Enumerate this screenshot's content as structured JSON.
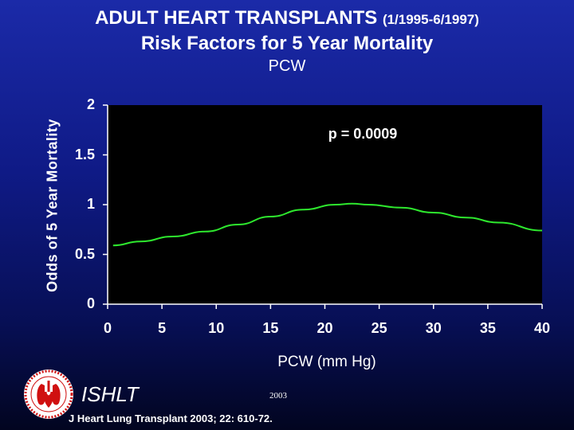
{
  "header": {
    "title_main": "ADULT HEART TRANSPLANTS",
    "title_period": "(1/1995-6/1997)",
    "title_line2": "Risk Factors for 5 Year Mortality",
    "subtitle": "PCW"
  },
  "annotation": {
    "pvalue": "p = 0.0009"
  },
  "footer": {
    "org": "ISHLT",
    "year": "2003",
    "citation": "J Heart Lung Transplant 2003; 22: 610-72."
  },
  "colors": {
    "plot_background": "#000000",
    "line": "#2ee82e",
    "text": "#ffffff",
    "logo_red": "#d01010"
  },
  "icons": {
    "logo": "ishlt-heart-lung-logo"
  },
  "chart_data": {
    "type": "line",
    "title": "ADULT HEART TRANSPLANTS (1/1995-6/1997) Risk Factors for 5 Year Mortality",
    "subtitle": "PCW",
    "xlabel": "PCW (mm Hg)",
    "ylabel": "Odds of 5 Year Mortality",
    "xlim": [
      0,
      40
    ],
    "ylim": [
      0,
      2
    ],
    "x_ticks": [
      "0",
      "5",
      "10",
      "15",
      "20",
      "25",
      "30",
      "35",
      "40"
    ],
    "y_ticks": [
      "0",
      "0.5",
      "1",
      "1.5",
      "2"
    ],
    "grid": false,
    "x": [
      0.5,
      3,
      6,
      9,
      12,
      15,
      18,
      21,
      22.5,
      24,
      27,
      30,
      33,
      36,
      40
    ],
    "series": [
      {
        "values": [
          0.59,
          0.63,
          0.68,
          0.73,
          0.8,
          0.88,
          0.95,
          1.0,
          1.01,
          1.0,
          0.97,
          0.92,
          0.87,
          0.82,
          0.74
        ]
      }
    ]
  }
}
